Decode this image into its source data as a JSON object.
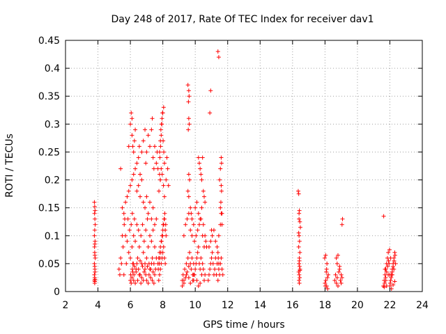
{
  "chart_data": {
    "type": "scatter",
    "title": "Day 248 of 2017, Rate Of TEC Index for receiver dav1",
    "xlabel": "GPS time / hours",
    "ylabel": "ROTI / TECUs",
    "xlim": [
      2,
      24
    ],
    "ylim": [
      0,
      0.45
    ],
    "xticks": [
      2,
      4,
      6,
      8,
      10,
      12,
      14,
      16,
      18,
      20,
      22,
      24
    ],
    "xtick_labels": [
      "2",
      "4",
      "6",
      "8",
      "10",
      "12",
      "14",
      "16",
      "18",
      "20",
      "22",
      "24"
    ],
    "yticks": [
      0,
      0.05,
      0.1,
      0.15,
      0.2,
      0.25,
      0.3,
      0.35,
      0.4,
      0.45
    ],
    "ytick_labels": [
      "0",
      "0.05",
      "0.1",
      "0.15",
      "0.2",
      "0.25",
      "0.3",
      "0.35",
      "0.4",
      "0.45"
    ],
    "grid": true,
    "marker": "plus",
    "color": "#ff0000",
    "series": [
      {
        "name": "ROTI",
        "x": [
          3.78,
          3.8,
          3.82,
          3.79,
          3.81,
          3.83,
          3.8,
          3.78,
          3.82,
          3.81,
          3.79,
          3.8,
          3.83,
          3.78,
          3.81,
          3.82,
          3.8,
          3.79,
          3.81,
          3.8,
          3.82,
          3.78,
          3.8,
          3.81,
          5.3,
          5.35,
          5.4,
          5.45,
          5.5,
          5.55,
          5.6,
          5.62,
          5.65,
          5.7,
          5.75,
          5.8,
          5.85,
          5.9,
          5.95,
          6.0,
          6.05,
          6.1,
          6.12,
          6.15,
          6.2,
          6.25,
          6.3,
          6.35,
          6.4,
          6.45,
          6.5,
          6.55,
          6.6,
          6.65,
          6.7,
          6.75,
          6.8,
          6.85,
          6.9,
          6.95,
          7.0,
          7.05,
          7.1,
          7.15,
          7.2,
          7.25,
          7.3,
          7.35,
          7.4,
          7.45,
          7.5,
          7.55,
          7.6,
          6.0,
          6.02,
          6.05,
          6.1,
          6.12,
          6.15,
          6.18,
          6.2,
          6.22,
          6.25,
          6.3,
          6.35,
          6.4,
          6.45,
          6.5,
          6.55,
          6.6,
          6.65,
          6.7,
          6.75,
          6.8,
          6.85,
          6.9,
          6.95,
          7.0,
          7.05,
          7.1,
          7.15,
          7.2,
          7.25,
          7.3,
          7.35,
          7.4,
          7.45,
          7.5,
          5.5,
          5.6,
          5.7,
          5.8,
          5.9,
          6.0,
          6.1,
          6.2,
          6.3,
          6.4,
          6.5,
          6.6,
          6.7,
          6.8,
          6.9,
          7.0,
          7.1,
          7.2,
          7.3,
          7.4,
          7.5,
          7.6,
          5.4,
          5.9,
          6.0,
          6.05,
          6.1,
          6.1,
          6.15,
          6.2,
          6.25,
          6.3,
          6.4,
          6.5,
          6.55,
          6.6,
          6.7,
          6.8,
          6.9,
          6.95,
          7.0,
          7.1,
          7.2,
          7.3,
          7.35,
          7.4,
          7.45,
          7.5,
          7.6,
          7.65,
          7.7,
          7.8,
          7.85,
          7.7,
          7.75,
          7.8,
          7.85,
          7.9,
          7.95,
          8.0,
          8.05,
          8.1,
          8.15,
          8.2,
          7.72,
          7.78,
          7.82,
          7.88,
          7.92,
          7.98,
          8.02,
          8.08,
          8.12,
          8.18,
          7.75,
          7.8,
          7.85,
          7.9,
          7.95,
          8.0,
          8.05,
          8.1,
          8.15,
          7.76,
          7.84,
          7.9,
          7.96,
          8.04,
          8.1,
          7.8,
          7.85,
          7.88,
          7.92,
          7.95,
          8.0,
          8.05,
          7.82,
          7.86,
          7.9,
          7.94,
          7.98,
          8.02,
          8.06,
          8.1,
          8.2,
          8.3,
          8.25,
          8.35,
          9.2,
          9.25,
          9.3,
          9.35,
          9.4,
          9.45,
          9.5,
          9.55,
          9.6,
          9.65,
          9.7,
          9.75,
          9.8,
          9.85,
          9.9,
          9.3,
          9.4,
          9.5,
          9.6,
          9.7,
          9.8,
          9.9,
          9.55,
          9.6,
          9.62,
          9.58,
          9.6,
          9.63,
          9.57,
          9.6,
          9.65,
          9.55,
          9.6,
          9.7,
          9.75,
          9.8,
          9.2,
          9.3,
          9.45,
          9.6,
          9.7,
          9.85,
          9.9,
          9.9,
          9.95,
          10.0,
          10.05,
          10.1,
          10.15,
          10.2,
          10.25,
          10.3,
          10.35,
          10.4,
          10.45,
          10.5,
          10.55,
          10.6,
          9.95,
          10.05,
          10.15,
          10.25,
          10.35,
          10.45,
          10.55,
          10.0,
          10.1,
          10.2,
          10.3,
          10.4,
          10.5,
          10.6,
          10.65,
          10.7,
          10.2,
          10.25,
          10.3,
          10.35,
          10.4,
          10.5,
          10.55,
          10.6,
          10.45,
          10.1,
          10.2,
          10.3,
          10.8,
          10.85,
          10.9,
          10.95,
          11.0,
          11.05,
          11.1,
          11.15,
          11.2,
          11.25,
          11.3,
          11.35,
          11.4,
          11.45,
          11.5,
          11.55,
          11.6,
          11.65,
          11.7,
          10.85,
          10.95,
          11.05,
          11.15,
          11.25,
          11.35,
          11.45,
          11.55,
          11.65,
          11.4,
          11.45,
          11.5,
          11.55,
          11.6,
          11.62,
          11.58,
          11.6,
          11.65,
          11.55,
          11.6,
          11.62,
          11.4,
          11.42,
          11.45,
          10.9,
          10.95,
          11.0,
          16.35,
          16.38,
          16.4,
          16.42,
          16.45,
          16.48,
          16.4,
          16.43,
          16.38,
          16.45,
          16.42,
          16.4,
          16.43,
          16.46,
          16.38,
          16.41,
          16.44,
          16.4,
          16.42,
          16.45,
          16.4,
          16.38,
          16.42,
          18.0,
          18.05,
          18.1,
          18.15,
          18.2,
          17.98,
          18.04,
          18.1,
          18.16,
          18.02,
          18.08,
          18.12,
          18.6,
          18.65,
          18.7,
          18.75,
          18.8,
          18.85,
          18.9,
          18.95,
          19.0,
          19.05,
          18.7,
          18.8,
          18.9,
          19.0,
          19.08,
          19.05,
          18.75,
          21.6,
          21.65,
          21.7,
          21.75,
          21.8,
          21.85,
          21.9,
          21.95,
          22.0,
          21.62,
          21.68,
          21.74,
          21.8,
          21.86,
          21.92,
          21.98,
          21.7,
          21.75,
          21.8,
          21.9,
          21.65,
          22.0,
          22.05,
          22.1,
          22.15,
          22.2,
          22.25,
          22.3,
          22.35,
          22.02,
          22.08,
          22.14,
          22.2,
          22.26,
          22.32,
          22.1,
          22.2,
          22.3,
          22.15,
          22.25,
          22.05
        ],
        "y": [
          0.16,
          0.152,
          0.145,
          0.14,
          0.13,
          0.12,
          0.11,
          0.1,
          0.09,
          0.085,
          0.08,
          0.07,
          0.06,
          0.05,
          0.04,
          0.035,
          0.025,
          0.02,
          0.018,
          0.015,
          0.022,
          0.03,
          0.045,
          0.065,
          0.04,
          0.03,
          0.06,
          0.05,
          0.1,
          0.08,
          0.03,
          0.12,
          0.13,
          0.1,
          0.05,
          0.09,
          0.13,
          0.07,
          0.11,
          0.06,
          0.12,
          0.08,
          0.14,
          0.05,
          0.1,
          0.13,
          0.09,
          0.04,
          0.12,
          0.06,
          0.11,
          0.08,
          0.03,
          0.1,
          0.05,
          0.12,
          0.07,
          0.09,
          0.04,
          0.11,
          0.06,
          0.13,
          0.08,
          0.05,
          0.1,
          0.04,
          0.09,
          0.06,
          0.11,
          0.05,
          0.08,
          0.04,
          0.06,
          0.02,
          0.03,
          0.015,
          0.025,
          0.04,
          0.035,
          0.05,
          0.02,
          0.03,
          0.045,
          0.015,
          0.035,
          0.05,
          0.02,
          0.04,
          0.03,
          0.055,
          0.015,
          0.025,
          0.045,
          0.02,
          0.035,
          0.05,
          0.03,
          0.02,
          0.045,
          0.015,
          0.03,
          0.04,
          0.025,
          0.05,
          0.02,
          0.035,
          0.015,
          0.03,
          0.15,
          0.14,
          0.16,
          0.17,
          0.18,
          0.19,
          0.2,
          0.21,
          0.22,
          0.18,
          0.19,
          0.17,
          0.2,
          0.16,
          0.15,
          0.17,
          0.14,
          0.16,
          0.13,
          0.15,
          0.12,
          0.13,
          0.22,
          0.26,
          0.3,
          0.32,
          0.31,
          0.28,
          0.26,
          0.25,
          0.27,
          0.29,
          0.23,
          0.24,
          0.26,
          0.21,
          0.25,
          0.27,
          0.29,
          0.23,
          0.25,
          0.28,
          0.26,
          0.29,
          0.31,
          0.24,
          0.22,
          0.26,
          0.23,
          0.25,
          0.22,
          0.21,
          0.2,
          0.05,
          0.06,
          0.07,
          0.08,
          0.09,
          0.1,
          0.11,
          0.12,
          0.13,
          0.11,
          0.1,
          0.04,
          0.05,
          0.06,
          0.07,
          0.09,
          0.1,
          0.12,
          0.13,
          0.14,
          0.12,
          0.02,
          0.03,
          0.04,
          0.05,
          0.06,
          0.07,
          0.08,
          0.06,
          0.05,
          0.18,
          0.2,
          0.22,
          0.21,
          0.19,
          0.17,
          0.25,
          0.27,
          0.29,
          0.3,
          0.31,
          0.32,
          0.33,
          0.24,
          0.26,
          0.28,
          0.3,
          0.32,
          0.27,
          0.25,
          0.23,
          0.2,
          0.22,
          0.24,
          0.19,
          0.02,
          0.03,
          0.015,
          0.04,
          0.025,
          0.05,
          0.035,
          0.06,
          0.045,
          0.07,
          0.05,
          0.04,
          0.06,
          0.03,
          0.05,
          0.1,
          0.12,
          0.13,
          0.14,
          0.11,
          0.1,
          0.12,
          0.37,
          0.36,
          0.35,
          0.34,
          0.31,
          0.3,
          0.29,
          0.21,
          0.2,
          0.18,
          0.17,
          0.15,
          0.14,
          0.13,
          0.01,
          0.02,
          0.03,
          0.025,
          0.015,
          0.02,
          0.03,
          0.02,
          0.03,
          0.04,
          0.05,
          0.06,
          0.07,
          0.08,
          0.05,
          0.04,
          0.06,
          0.03,
          0.05,
          0.04,
          0.02,
          0.03,
          0.09,
          0.1,
          0.11,
          0.12,
          0.13,
          0.1,
          0.08,
          0.15,
          0.16,
          0.14,
          0.13,
          0.15,
          0.12,
          0.1,
          0.09,
          0.08,
          0.24,
          0.23,
          0.22,
          0.21,
          0.2,
          0.18,
          0.17,
          0.16,
          0.24,
          0.02,
          0.01,
          0.015,
          0.02,
          0.03,
          0.04,
          0.05,
          0.06,
          0.07,
          0.05,
          0.03,
          0.04,
          0.06,
          0.03,
          0.05,
          0.02,
          0.04,
          0.03,
          0.05,
          0.06,
          0.04,
          0.03,
          0.08,
          0.09,
          0.1,
          0.11,
          0.09,
          0.08,
          0.1,
          0.12,
          0.14,
          0.43,
          0.42,
          0.2,
          0.22,
          0.24,
          0.18,
          0.16,
          0.14,
          0.12,
          0.15,
          0.19,
          0.23,
          0.07,
          0.06,
          0.05,
          0.32,
          0.36,
          0.11,
          0.18,
          0.175,
          0.14,
          0.145,
          0.125,
          0.115,
          0.1,
          0.09,
          0.08,
          0.07,
          0.06,
          0.05,
          0.045,
          0.04,
          0.035,
          0.03,
          0.025,
          0.02,
          0.015,
          0.038,
          0.13,
          0.105,
          0.055,
          0.015,
          0.02,
          0.01,
          0.025,
          0.03,
          0.06,
          0.065,
          0.04,
          0.005,
          0.01,
          0.035,
          0.05,
          0.02,
          0.03,
          0.015,
          0.025,
          0.01,
          0.035,
          0.04,
          0.02,
          0.03,
          0.025,
          0.06,
          0.065,
          0.045,
          0.015,
          0.13,
          0.12,
          0.05,
          0.01,
          0.02,
          0.03,
          0.04,
          0.05,
          0.06,
          0.07,
          0.05,
          0.03,
          0.135,
          0.015,
          0.025,
          0.035,
          0.045,
          0.055,
          0.075,
          0.04,
          0.02,
          0.01,
          0.03,
          0.008,
          0.01,
          0.02,
          0.03,
          0.04,
          0.05,
          0.06,
          0.07,
          0.05,
          0.015,
          0.025,
          0.035,
          0.045,
          0.055,
          0.065,
          0.005,
          0.012,
          0.018,
          0.03,
          0.04,
          0.06
        ]
      }
    ]
  }
}
